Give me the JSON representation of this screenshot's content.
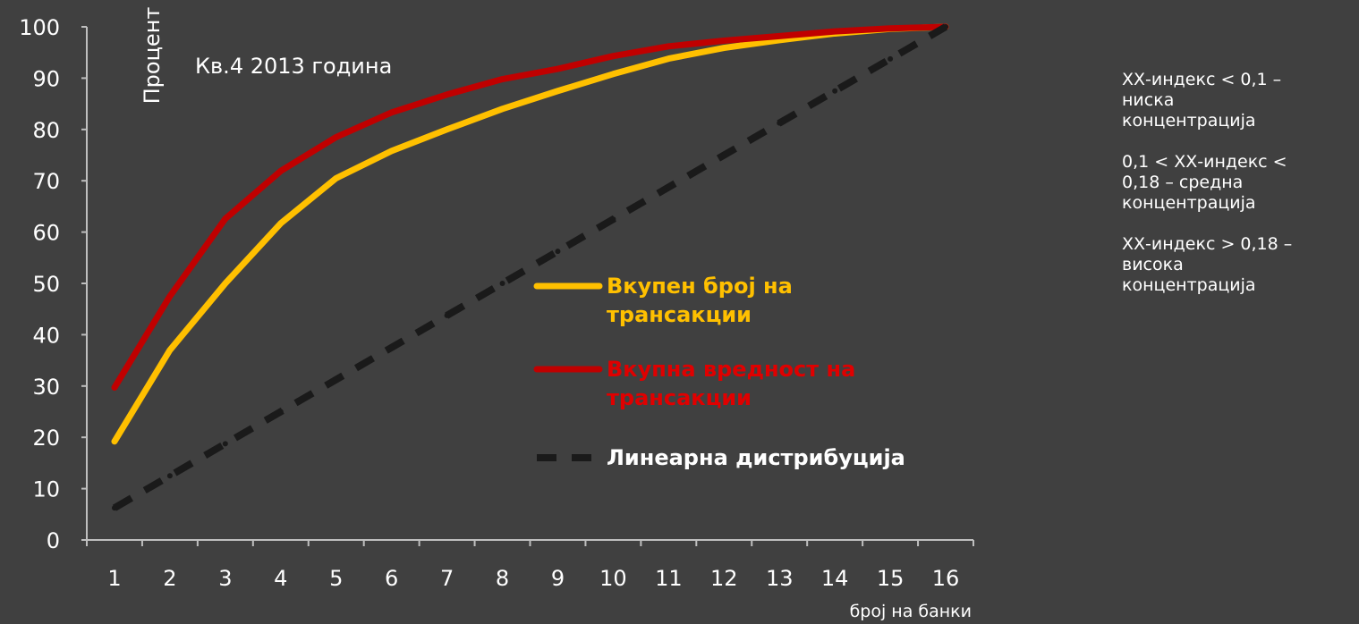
{
  "chart_data": {
    "type": "line",
    "subtitle": "Кв.4 2013 година",
    "ylabel": "Процент",
    "xlabel": "број на банки",
    "categories": [
      "1",
      "2",
      "3",
      "4",
      "5",
      "6",
      "7",
      "8",
      "9",
      "10",
      "11",
      "12",
      "13",
      "14",
      "15",
      "16"
    ],
    "ylim": [
      0,
      100
    ],
    "yticks": [
      0,
      10,
      20,
      30,
      40,
      50,
      60,
      70,
      80,
      90,
      100
    ],
    "grid": false,
    "legend_position": "center-right",
    "series": [
      {
        "name": "Вкупен број на трансакции",
        "color": "#ffc000",
        "style": "solid",
        "values": [
          19.2,
          37,
          50,
          61.7,
          70.5,
          75.8,
          80,
          84,
          87.5,
          90.8,
          93.8,
          95.9,
          97.4,
          98.7,
          99.6,
          100
        ]
      },
      {
        "name": "Вкупна вредност на трансакции",
        "color": "#c00000",
        "style": "solid",
        "values": [
          29.7,
          47.5,
          62.6,
          71.9,
          78.5,
          83.3,
          86.8,
          89.8,
          91.8,
          94.3,
          96.2,
          97.3,
          98.2,
          99.1,
          99.7,
          100
        ]
      },
      {
        "name": "Линеарна дистрибуција",
        "color": "#1a1a1a",
        "style": "dashed",
        "values": [
          6.25,
          12.5,
          18.75,
          25,
          31.25,
          37.5,
          43.75,
          50,
          56.25,
          62.5,
          68.75,
          75,
          81.25,
          87.5,
          93.75,
          100
        ]
      }
    ],
    "legend": [
      {
        "lines": [
          "Вкупен број на",
          "трансакции"
        ],
        "color": "#ffc000",
        "text_color": "#ffc000"
      },
      {
        "lines": [
          "Вкупна вредност на",
          "трансакции"
        ],
        "color": "#c00000",
        "text_color": "#e00000"
      },
      {
        "lines": [
          "Линеарна дистрибуција"
        ],
        "color": "#1a1a1a",
        "text_color": "#ffffff"
      }
    ]
  },
  "notes": [
    {
      "lines": [
        "ХХ-индекс < 0,1 –",
        "ниска",
        "концентрација"
      ]
    },
    {
      "lines": [
        "0,1 < ХХ-индекс <",
        "0,18 – средна",
        "концентрација"
      ]
    },
    {
      "lines": [
        "ХХ-индекс > 0,18 –",
        "висока",
        "концентрација"
      ]
    }
  ]
}
